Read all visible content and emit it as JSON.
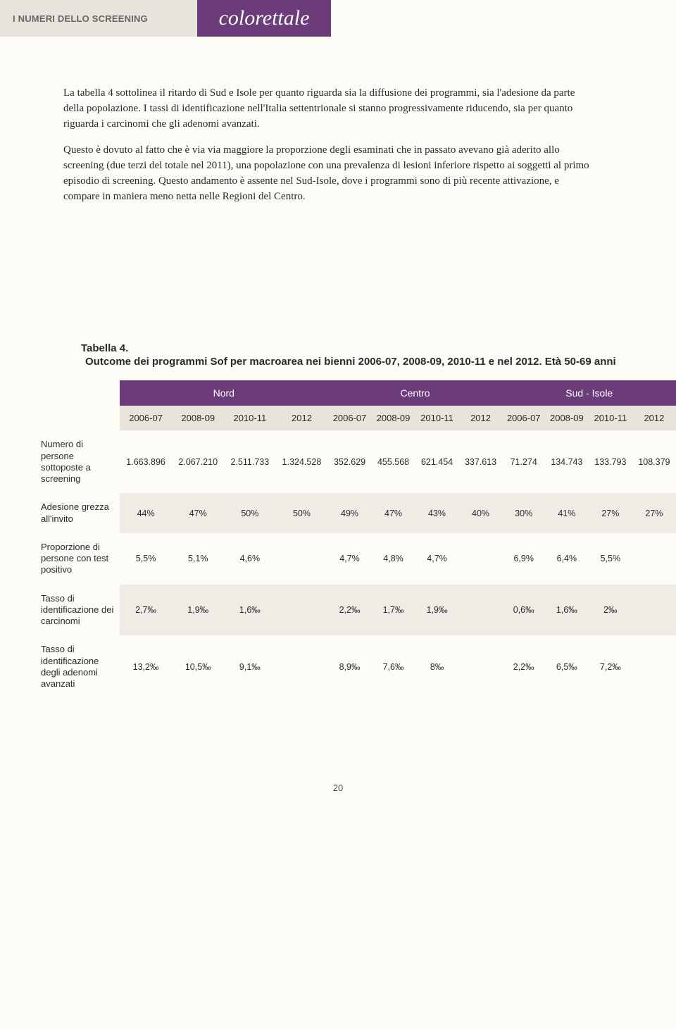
{
  "header": {
    "section_label": "I NUMERI DELLO SCREENING",
    "topic": "colorettale"
  },
  "paragraphs": [
    "La tabella 4 sottolinea il ritardo di Sud e Isole per quanto riguarda sia la diffusione dei programmi, sia l'adesione da parte della popolazione. I tassi di identificazione nell'Italia settentrionale si stanno progressivamente riducendo, sia per quanto riguarda i carcinomi che gli adenomi avanzati.",
    "Questo è dovuto al fatto che è via via maggiore la proporzione degli esaminati che in passato avevano già aderito allo screening (due terzi del totale nel 2011), una popolazione con una prevalenza di lesioni inferiore rispetto ai soggetti al primo episodio di screening. Questo andamento è assente nel Sud-Isole, dove i programmi sono di più recente attivazione, e compare in maniera meno netta nelle Regioni del Centro."
  ],
  "table": {
    "title_line1": "Tabella 4.",
    "title_line2": "Outcome dei programmi Sof per macroarea nei bienni 2006-07, 2008-09, 2010-11 e nel 2012. Età 50-69 anni",
    "regions": [
      "Nord",
      "Centro",
      "Sud - Isole"
    ],
    "years": [
      "2006-07",
      "2008-09",
      "2010-11",
      "2012",
      "2006-07",
      "2008-09",
      "2010-11",
      "2012",
      "2006-07",
      "2008-09",
      "2010-11",
      "2012"
    ],
    "rows": [
      {
        "label": "Numero di persone sottoposte a screening",
        "cells": [
          "1.663.896",
          "2.067.210",
          "2.511.733",
          "1.324.528",
          "352.629",
          "455.568",
          "621.454",
          "337.613",
          "71.274",
          "134.743",
          "133.793",
          "108.379"
        ]
      },
      {
        "label": "Adesione grezza all'invito",
        "cells": [
          "44%",
          "47%",
          "50%",
          "50%",
          "49%",
          "47%",
          "43%",
          "40%",
          "30%",
          "41%",
          "27%",
          "27%"
        ]
      },
      {
        "label": "Proporzione di persone con test positivo",
        "cells": [
          "5,5%",
          "5,1%",
          "4,6%",
          "",
          "4,7%",
          "4,8%",
          "4,7%",
          "",
          "6,9%",
          "6,4%",
          "5,5%",
          ""
        ]
      },
      {
        "label": "Tasso di identificazione dei carcinomi",
        "cells": [
          "2,7‰",
          "1,9‰",
          "1,6‰",
          "",
          "2,2‰",
          "1,7‰",
          "1,9‰",
          "",
          "0,6‰",
          "1,6‰",
          "2‰",
          ""
        ]
      },
      {
        "label": "Tasso di identificazione degli adenomi avanzati",
        "cells": [
          "13,2‰",
          "10,5‰",
          "9,1‰",
          "",
          "8,9‰",
          "7,6‰",
          "8‰",
          "",
          "2,2‰",
          "6,5‰",
          "7,2‰",
          ""
        ]
      }
    ]
  },
  "page_number": "20",
  "colors": {
    "brand_purple": "#6b3b7a",
    "light_band": "#e8e4dc",
    "page_bg": "#fdfbf5",
    "alt_row": "#efece5"
  }
}
